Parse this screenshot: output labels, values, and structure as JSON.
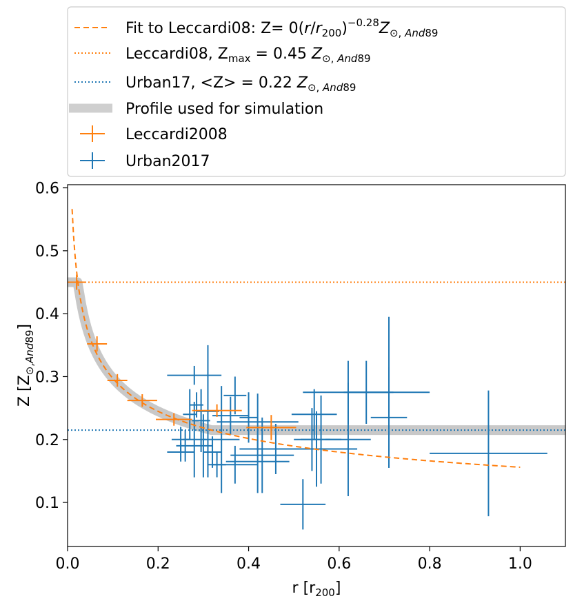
{
  "chart_data": {
    "type": "scatter",
    "xlabel": "r [r₂₀₀]",
    "ylabel": "Z [Z⊙,And89]",
    "xlim": [
      0.0,
      1.1
    ],
    "ylim": [
      0.03,
      0.605
    ],
    "xticks": [
      "0.0",
      "0.2",
      "0.4",
      "0.6",
      "0.8",
      "1.0"
    ],
    "yticks": [
      "0.1",
      "0.2",
      "0.3",
      "0.4",
      "0.5",
      "0.6"
    ],
    "grid": false,
    "legend_position": "top (above plot)",
    "legend": [
      {
        "label": "Fit to Leccardi08: Z= 0(r/r₂₀₀)⁻⁰·²⁸Z⊙,And89",
        "style": "dashed-line",
        "color": "#ff7f0e"
      },
      {
        "label": "Leccardi08, Zmax = 0.45 Z⊙,And89",
        "style": "dotted-line",
        "color": "#ff7f0e"
      },
      {
        "label": "Urban17, <Z> = 0.22 Z⊙,And89",
        "style": "dotted-line",
        "color": "#1f77b4"
      },
      {
        "label": "Profile used for simulation",
        "style": "thick-band",
        "color": "#c8c8c8"
      },
      {
        "label": "Leccardi2008",
        "style": "errorbar",
        "color": "#ff7f0e"
      },
      {
        "label": "Urban2017",
        "style": "errorbar",
        "color": "#1f77b4"
      }
    ],
    "reference_lines": [
      {
        "name": "Leccardi08 Zmax",
        "y": 0.45,
        "color": "#ff7f0e",
        "style": "dotted"
      },
      {
        "name": "Urban17 mean",
        "y": 0.215,
        "color": "#1f77b4",
        "style": "dotted"
      }
    ],
    "fit_curve": {
      "amplitude": 0.156,
      "exponent": -0.28,
      "x_range": [
        0.01,
        1.0
      ],
      "color": "#ff7f0e",
      "style": "dashed"
    },
    "profile_band": {
      "color": "#c8c8c8",
      "plateau_until": 0.02,
      "plateau_value": 0.45,
      "floor_value": 0.215
    },
    "series": [
      {
        "name": "Leccardi2008",
        "color": "#ff7f0e",
        "points": [
          {
            "x": 0.02,
            "xerr": 0.02,
            "y": 0.45,
            "yerr": 0.012
          },
          {
            "x": 0.065,
            "xerr": 0.022,
            "y": 0.352,
            "yerr": 0.012
          },
          {
            "x": 0.11,
            "xerr": 0.022,
            "y": 0.294,
            "yerr": 0.01
          },
          {
            "x": 0.165,
            "xerr": 0.033,
            "y": 0.262,
            "yerr": 0.01
          },
          {
            "x": 0.235,
            "xerr": 0.04,
            "y": 0.232,
            "yerr": 0.01
          },
          {
            "x": 0.33,
            "xerr": 0.055,
            "y": 0.246,
            "yerr": 0.01
          },
          {
            "x": 0.45,
            "xerr": 0.055,
            "y": 0.219,
            "yerr": 0.02
          }
        ]
      },
      {
        "name": "Urban2017",
        "color": "#1f77b4",
        "points": [
          {
            "x": 0.25,
            "xerr": 0.02,
            "y": 0.2,
            "yerr": 0.02
          },
          {
            "x": 0.26,
            "xerr": 0.02,
            "y": 0.19,
            "yerr": 0.025
          },
          {
            "x": 0.25,
            "xerr": 0.03,
            "y": 0.18,
            "yerr": 0.015
          },
          {
            "x": 0.27,
            "xerr": 0.015,
            "y": 0.24,
            "yerr": 0.04
          },
          {
            "x": 0.285,
            "xerr": 0.015,
            "y": 0.255,
            "yerr": 0.02
          },
          {
            "x": 0.28,
            "xerr": 0.025,
            "y": 0.2,
            "yerr": 0.06
          },
          {
            "x": 0.295,
            "xerr": 0.02,
            "y": 0.23,
            "yerr": 0.05
          },
          {
            "x": 0.3,
            "xerr": 0.02,
            "y": 0.19,
            "yerr": 0.05
          },
          {
            "x": 0.28,
            "xerr": 0.06,
            "y": 0.302,
            "yerr": 0.015
          },
          {
            "x": 0.31,
            "xerr": 0.025,
            "y": 0.245,
            "yerr": 0.105
          },
          {
            "x": 0.32,
            "xerr": 0.02,
            "y": 0.18,
            "yerr": 0.025
          },
          {
            "x": 0.34,
            "xerr": 0.04,
            "y": 0.2,
            "yerr": 0.085
          },
          {
            "x": 0.33,
            "xerr": 0.02,
            "y": 0.16,
            "yerr": 0.02
          },
          {
            "x": 0.36,
            "xerr": 0.04,
            "y": 0.238,
            "yerr": 0.03
          },
          {
            "x": 0.37,
            "xerr": 0.025,
            "y": 0.27,
            "yerr": 0.03
          },
          {
            "x": 0.37,
            "xerr": 0.05,
            "y": 0.16,
            "yerr": 0.03
          },
          {
            "x": 0.4,
            "xerr": 0.02,
            "y": 0.235,
            "yerr": 0.04
          },
          {
            "x": 0.42,
            "xerr": 0.07,
            "y": 0.165,
            "yerr": 0.05
          },
          {
            "x": 0.42,
            "xerr": 0.09,
            "y": 0.228,
            "yerr": 0.045
          },
          {
            "x": 0.43,
            "xerr": 0.07,
            "y": 0.175,
            "yerr": 0.06
          },
          {
            "x": 0.46,
            "xerr": 0.08,
            "y": 0.185,
            "yerr": 0.04
          },
          {
            "x": 0.52,
            "xerr": 0.05,
            "y": 0.097,
            "yerr": 0.04
          },
          {
            "x": 0.54,
            "xerr": 0.04,
            "y": 0.2,
            "yerr": 0.05
          },
          {
            "x": 0.545,
            "xerr": 0.05,
            "y": 0.24,
            "yerr": 0.04
          },
          {
            "x": 0.55,
            "xerr": 0.09,
            "y": 0.185,
            "yerr": 0.06
          },
          {
            "x": 0.56,
            "xerr": 0.045,
            "y": 0.2,
            "yerr": 0.07
          },
          {
            "x": 0.62,
            "xerr": 0.1,
            "y": 0.275,
            "yerr": 0.05
          },
          {
            "x": 0.62,
            "xerr": 0.05,
            "y": 0.2,
            "yerr": 0.09
          },
          {
            "x": 0.66,
            "xerr": 0.05,
            "y": 0.275,
            "yerr": 0.05
          },
          {
            "x": 0.71,
            "xerr": 0.09,
            "y": 0.275,
            "yerr": 0.12
          },
          {
            "x": 0.71,
            "xerr": 0.04,
            "y": 0.235,
            "yerr": 0.08
          },
          {
            "x": 0.93,
            "xerr": 0.13,
            "y": 0.178,
            "yerr": 0.1
          }
        ]
      }
    ]
  }
}
